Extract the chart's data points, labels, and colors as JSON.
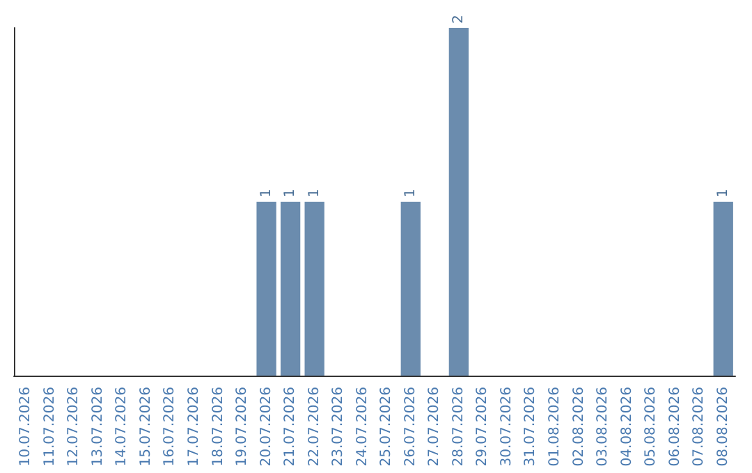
{
  "chart_data": {
    "type": "bar",
    "categories": [
      "10.07.2026",
      "11.07.2026",
      "12.07.2026",
      "13.07.2026",
      "14.07.2026",
      "15.07.2026",
      "16.07.2026",
      "17.07.2026",
      "18.07.2026",
      "19.07.2026",
      "20.07.2026",
      "21.07.2026",
      "22.07.2026",
      "23.07.2026",
      "24.07.2026",
      "25.07.2026",
      "26.07.2026",
      "27.07.2026",
      "28.07.2026",
      "29.07.2026",
      "30.07.2026",
      "31.07.2026",
      "01.08.2026",
      "02.08.2026",
      "03.08.2026",
      "04.08.2026",
      "05.08.2026",
      "06.08.2026",
      "07.08.2026",
      "08.08.2026"
    ],
    "values": [
      0,
      0,
      0,
      0,
      0,
      0,
      0,
      0,
      0,
      0,
      1,
      1,
      1,
      0,
      0,
      0,
      1,
      0,
      2,
      0,
      0,
      0,
      0,
      0,
      0,
      0,
      0,
      0,
      0,
      1
    ],
    "value_labels": [
      null,
      null,
      null,
      null,
      null,
      null,
      null,
      null,
      null,
      null,
      "1",
      "1",
      "1",
      null,
      null,
      null,
      "1",
      null,
      "2",
      null,
      null,
      null,
      null,
      null,
      null,
      null,
      null,
      null,
      null,
      "1"
    ],
    "color": "#6b8cae",
    "tick_labels": "x"
  }
}
